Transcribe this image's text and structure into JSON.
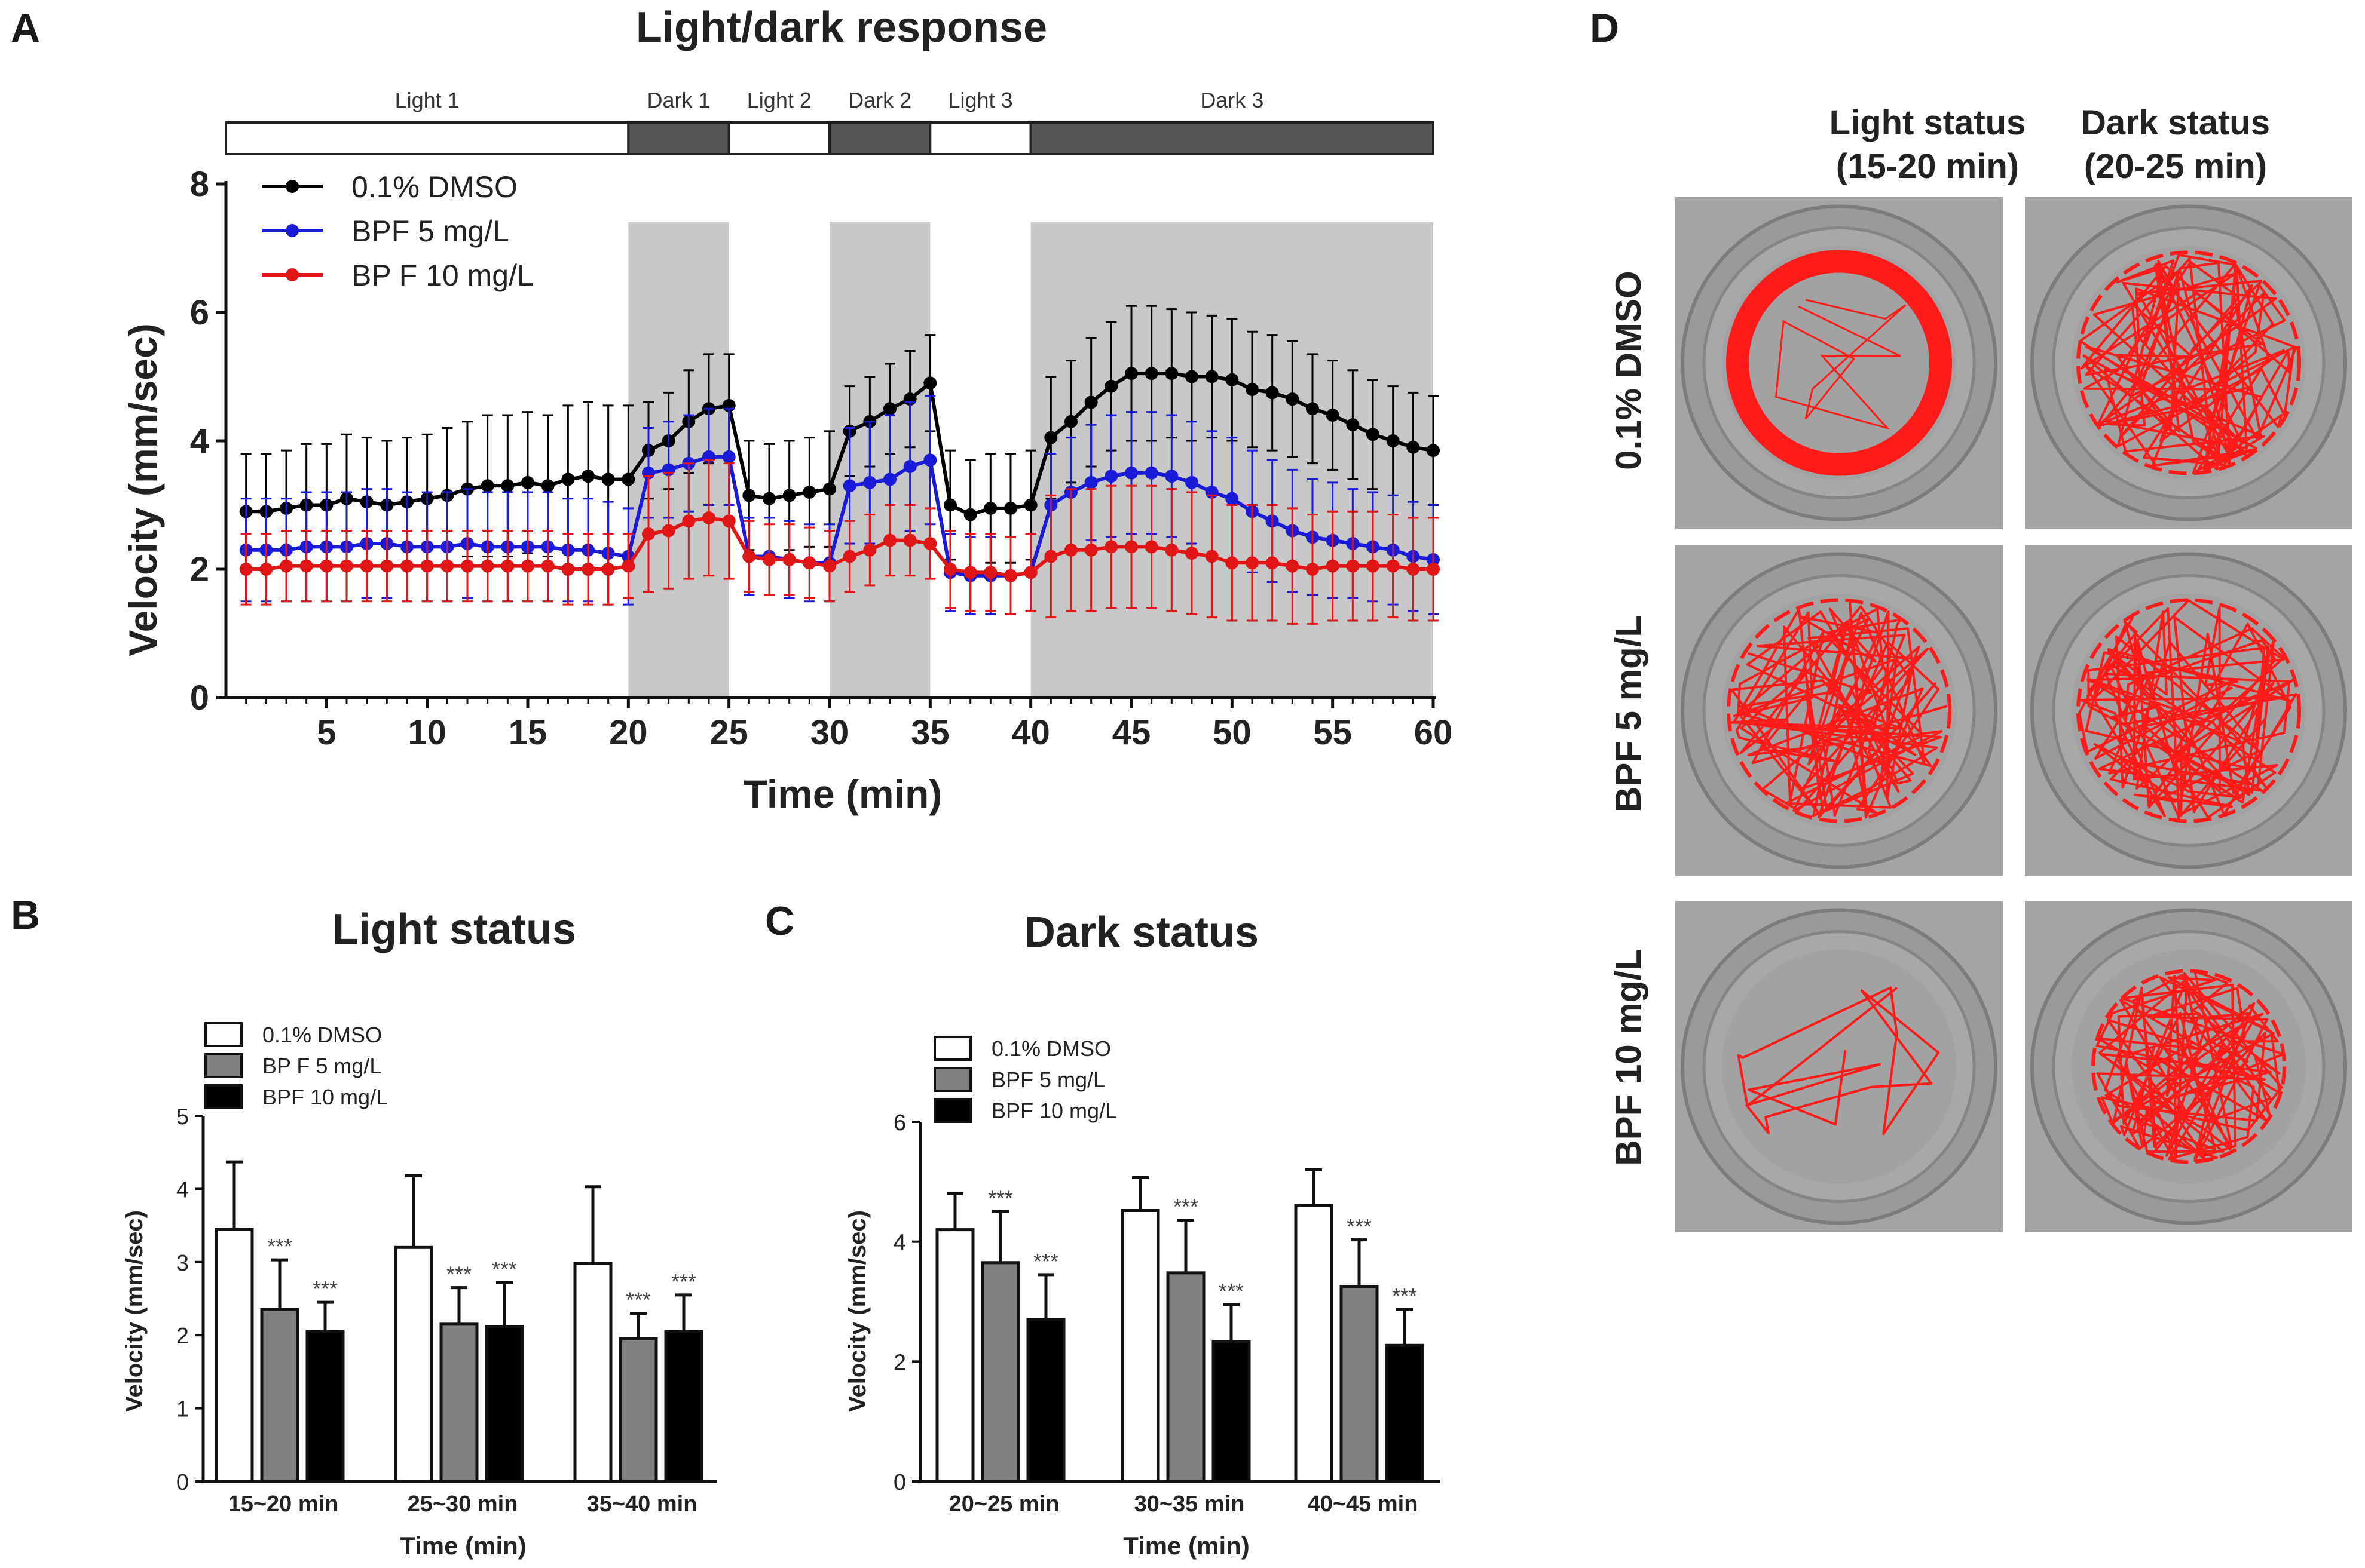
{
  "chart_data": [
    {
      "panel": "A",
      "type": "line",
      "title": "Light/dark response",
      "xlabel": "Time (min)",
      "ylabel": "Velocity (mm/sec)",
      "xlim": [
        0,
        60
      ],
      "ylim": [
        0,
        8
      ],
      "xticks": [
        5,
        10,
        15,
        20,
        25,
        30,
        35,
        40,
        45,
        50,
        55,
        60
      ],
      "yticks": [
        0,
        2,
        4,
        6,
        8
      ],
      "phases": [
        {
          "label": "Light 1",
          "start": 0,
          "end": 20,
          "shade": "light"
        },
        {
          "label": "Dark 1",
          "start": 20,
          "end": 25,
          "shade": "dark"
        },
        {
          "label": "Light 2",
          "start": 25,
          "end": 30,
          "shade": "light"
        },
        {
          "label": "Dark 2",
          "start": 30,
          "end": 35,
          "shade": "dark"
        },
        {
          "label": "Light 3",
          "start": 35,
          "end": 40,
          "shade": "light"
        },
        {
          "label": "Dark 3",
          "start": 40,
          "end": 60,
          "shade": "dark"
        }
      ],
      "x": [
        1,
        2,
        3,
        4,
        5,
        6,
        7,
        8,
        9,
        10,
        11,
        12,
        13,
        14,
        15,
        16,
        17,
        18,
        19,
        20,
        21,
        22,
        23,
        24,
        25,
        26,
        27,
        28,
        29,
        30,
        31,
        32,
        33,
        34,
        35,
        36,
        37,
        38,
        39,
        40,
        41,
        42,
        43,
        44,
        45,
        46,
        47,
        48,
        49,
        50,
        51,
        52,
        53,
        54,
        55,
        56,
        57,
        58,
        59,
        60
      ],
      "series": [
        {
          "name": "0.1% DMSO",
          "color": "#000000",
          "values": [
            2.9,
            2.9,
            2.95,
            3.0,
            3.0,
            3.1,
            3.05,
            3.0,
            3.05,
            3.1,
            3.15,
            3.25,
            3.3,
            3.3,
            3.35,
            3.3,
            3.4,
            3.45,
            3.4,
            3.4,
            3.85,
            4.0,
            4.3,
            4.5,
            4.55,
            3.15,
            3.1,
            3.15,
            3.2,
            3.25,
            4.15,
            4.3,
            4.5,
            4.65,
            4.9,
            3.0,
            2.85,
            2.95,
            2.95,
            3.0,
            4.05,
            4.3,
            4.6,
            4.85,
            5.05,
            5.05,
            5.05,
            5.0,
            5.0,
            4.95,
            4.8,
            4.75,
            4.65,
            4.5,
            4.4,
            4.25,
            4.1,
            4.0,
            3.9,
            3.85
          ],
          "sd": [
            0.9,
            0.9,
            0.9,
            0.95,
            0.95,
            1.0,
            1.0,
            1.0,
            1.0,
            1.0,
            1.05,
            1.05,
            1.1,
            1.1,
            1.1,
            1.1,
            1.15,
            1.15,
            1.15,
            1.15,
            0.75,
            0.75,
            0.8,
            0.85,
            0.8,
            0.85,
            0.85,
            0.85,
            0.85,
            0.9,
            0.7,
            0.7,
            0.7,
            0.75,
            0.75,
            0.85,
            0.85,
            0.85,
            0.85,
            0.85,
            0.95,
            0.95,
            1.0,
            1.0,
            1.05,
            1.05,
            1.0,
            1.0,
            0.95,
            0.95,
            0.9,
            0.9,
            0.9,
            0.85,
            0.85,
            0.85,
            0.85,
            0.85,
            0.85,
            0.85
          ]
        },
        {
          "name": "BPF 5 mg/L",
          "color": "#1a1ad9",
          "values": [
            2.3,
            2.3,
            2.3,
            2.35,
            2.35,
            2.35,
            2.4,
            2.4,
            2.35,
            2.35,
            2.35,
            2.4,
            2.35,
            2.35,
            2.35,
            2.35,
            2.3,
            2.3,
            2.25,
            2.2,
            3.5,
            3.55,
            3.65,
            3.75,
            3.75,
            2.2,
            2.2,
            2.15,
            2.1,
            2.1,
            3.3,
            3.35,
            3.4,
            3.6,
            3.7,
            1.95,
            1.9,
            1.9,
            1.9,
            1.95,
            3.0,
            3.2,
            3.35,
            3.45,
            3.5,
            3.5,
            3.45,
            3.35,
            3.2,
            3.1,
            2.9,
            2.75,
            2.6,
            2.5,
            2.45,
            2.4,
            2.35,
            2.3,
            2.2,
            2.15
          ],
          "sd": [
            0.8,
            0.8,
            0.8,
            0.85,
            0.85,
            0.85,
            0.85,
            0.85,
            0.85,
            0.85,
            0.85,
            0.85,
            0.85,
            0.85,
            0.85,
            0.85,
            0.8,
            0.8,
            0.8,
            0.75,
            0.7,
            0.75,
            0.75,
            0.75,
            0.75,
            0.6,
            0.6,
            0.6,
            0.6,
            0.6,
            0.9,
            0.95,
            1.0,
            1.0,
            1.0,
            0.6,
            0.6,
            0.6,
            0.6,
            0.6,
            0.8,
            0.85,
            0.9,
            0.95,
            0.95,
            0.95,
            0.95,
            0.95,
            0.95,
            0.95,
            0.95,
            0.95,
            0.95,
            0.9,
            0.9,
            0.85,
            0.85,
            0.85,
            0.85,
            0.85
          ]
        },
        {
          "name": "BP F 10 mg/L",
          "color": "#e01515",
          "values": [
            2.0,
            2.0,
            2.05,
            2.05,
            2.05,
            2.05,
            2.05,
            2.05,
            2.05,
            2.05,
            2.05,
            2.05,
            2.05,
            2.05,
            2.05,
            2.05,
            2.0,
            2.0,
            2.0,
            2.05,
            2.55,
            2.6,
            2.75,
            2.8,
            2.75,
            2.2,
            2.15,
            2.15,
            2.1,
            2.05,
            2.2,
            2.3,
            2.45,
            2.45,
            2.4,
            2.0,
            1.95,
            1.95,
            1.9,
            1.95,
            2.2,
            2.3,
            2.3,
            2.35,
            2.35,
            2.35,
            2.3,
            2.25,
            2.2,
            2.1,
            2.1,
            2.1,
            2.05,
            2.0,
            2.05,
            2.05,
            2.05,
            2.05,
            2.0,
            2.0
          ],
          "sd": [
            0.55,
            0.55,
            0.55,
            0.55,
            0.55,
            0.55,
            0.55,
            0.55,
            0.55,
            0.55,
            0.55,
            0.55,
            0.55,
            0.55,
            0.55,
            0.55,
            0.55,
            0.55,
            0.55,
            0.5,
            0.9,
            0.9,
            0.9,
            0.9,
            0.9,
            0.55,
            0.55,
            0.55,
            0.55,
            0.55,
            0.55,
            0.55,
            0.55,
            0.55,
            0.55,
            0.6,
            0.6,
            0.6,
            0.6,
            0.6,
            0.95,
            0.95,
            0.95,
            0.95,
            0.95,
            0.95,
            0.95,
            0.95,
            0.95,
            0.9,
            0.9,
            0.9,
            0.9,
            0.85,
            0.85,
            0.85,
            0.85,
            0.8,
            0.8,
            0.8
          ]
        }
      ]
    },
    {
      "panel": "B",
      "type": "bar",
      "title": "Light status",
      "xlabel": "Time (min)",
      "ylabel": "Velocity (mm/sec)",
      "ylim": [
        0,
        5
      ],
      "yticks": [
        0,
        1,
        2,
        3,
        4,
        5
      ],
      "categories": [
        "15~20 min",
        "25~30 min",
        "35~40 min"
      ],
      "series": [
        {
          "name": "0.1% DMSO",
          "fill": "#ffffff",
          "values": [
            3.45,
            3.2,
            2.98
          ],
          "sd": [
            0.92,
            0.98,
            1.05
          ],
          "sig": [
            "",
            "",
            ""
          ]
        },
        {
          "name": "BP F 5 mg/L",
          "fill": "#808080",
          "values": [
            2.35,
            2.15,
            1.95
          ],
          "sd": [
            0.68,
            0.5,
            0.35
          ],
          "sig": [
            "***",
            "***",
            "***"
          ]
        },
        {
          "name": "BPF 10 mg/L",
          "fill": "#000000",
          "values": [
            2.05,
            2.12,
            2.05
          ],
          "sd": [
            0.4,
            0.6,
            0.5
          ],
          "sig": [
            "***",
            "***",
            "***"
          ]
        }
      ]
    },
    {
      "panel": "C",
      "type": "bar",
      "title": "Dark status",
      "xlabel": "Time (min)",
      "ylabel": "Velocity (mm/sec)",
      "ylim": [
        0,
        6
      ],
      "yticks": [
        0,
        2,
        4,
        6
      ],
      "categories": [
        "20~25 min",
        "30~35 min",
        "40~45 min"
      ],
      "series": [
        {
          "name": "0.1% DMSO",
          "fill": "#ffffff",
          "values": [
            4.2,
            4.52,
            4.6
          ],
          "sd": [
            0.6,
            0.55,
            0.6
          ],
          "sig": [
            "",
            "",
            ""
          ]
        },
        {
          "name": "BPF 5 mg/L",
          "fill": "#808080",
          "values": [
            3.65,
            3.48,
            3.25
          ],
          "sd": [
            0.85,
            0.88,
            0.78
          ],
          "sig": [
            "***",
            "***",
            "***"
          ]
        },
        {
          "name": "BPF 10 mg/L",
          "fill": "#000000",
          "values": [
            2.7,
            2.33,
            2.27
          ],
          "sd": [
            0.75,
            0.62,
            0.6
          ],
          "sig": [
            "***",
            "***",
            "***"
          ]
        }
      ]
    }
  ],
  "panels": {
    "a": {
      "letter": "A"
    },
    "b": {
      "letter": "B"
    },
    "c": {
      "letter": "C"
    },
    "d": {
      "letter": "D",
      "col_headers": [
        {
          "line1": "Light status",
          "line2": "(15-20 min)"
        },
        {
          "line1": "Dark status",
          "line2": "(20-25 min)"
        }
      ],
      "row_labels": [
        "0.1% DMSO",
        "BPF 5 mg/L",
        "BPF 10 mg/L"
      ],
      "track_color": "#ff1a1a"
    }
  }
}
